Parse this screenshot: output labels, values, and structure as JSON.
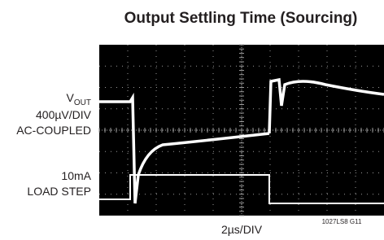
{
  "header": {
    "title": "Output Settling Time (Sourcing)"
  },
  "labels": {
    "vout": "V",
    "vout_subscript": "OUT",
    "vout_scale": "400µV/DIV",
    "vout_coupling": "AC-COUPLED",
    "load_current": "10mA",
    "load_name": "LOAD STEP",
    "time_scale": "2µs/DIV",
    "figure_id": "1027LS8 G11"
  }
}
